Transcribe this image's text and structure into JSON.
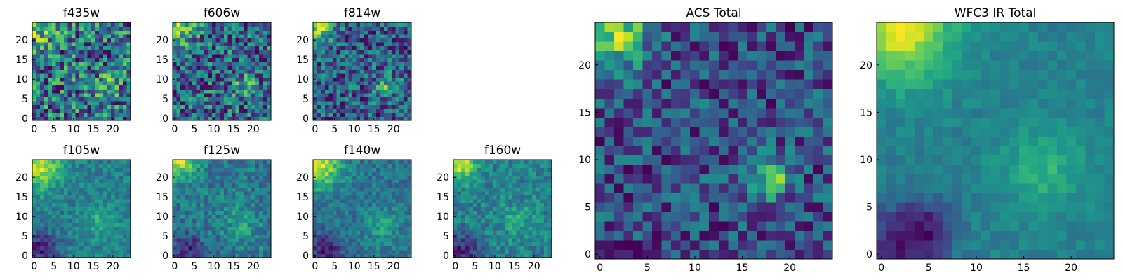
{
  "chart_data": [
    {
      "type": "heatmap",
      "id": "f435w",
      "title": "f435w",
      "grid_size": 25,
      "colormap": "viridis",
      "xticks": [
        0,
        5,
        10,
        15,
        20
      ],
      "yticks": [
        0,
        5,
        10,
        15,
        20
      ],
      "xlim": [
        -0.5,
        24.5
      ],
      "ylim": [
        -0.5,
        24.5
      ],
      "noise": 0.34,
      "seed": 11,
      "features": [
        {
          "cx": 1,
          "cy": 23,
          "amp": 0.25,
          "sigma": 3
        },
        {
          "cx": 18,
          "cy": 8,
          "amp": 0.2,
          "sigma": 2
        }
      ]
    },
    {
      "type": "heatmap",
      "id": "f606w",
      "title": "f606w",
      "grid_size": 25,
      "colormap": "viridis",
      "xticks": [
        0,
        5,
        10,
        15,
        20
      ],
      "yticks": [
        0,
        5,
        10,
        15,
        20
      ],
      "xlim": [
        -0.5,
        24.5
      ],
      "ylim": [
        -0.5,
        24.5
      ],
      "noise": 0.32,
      "seed": 23,
      "features": [
        {
          "cx": 1,
          "cy": 23,
          "amp": 0.35,
          "sigma": 3
        },
        {
          "cx": 18,
          "cy": 8,
          "amp": 0.25,
          "sigma": 2
        }
      ]
    },
    {
      "type": "heatmap",
      "id": "f814w",
      "title": "f814w",
      "grid_size": 25,
      "colormap": "viridis",
      "xticks": [
        0,
        5,
        10,
        15,
        20
      ],
      "yticks": [
        0,
        5,
        10,
        15,
        20
      ],
      "xlim": [
        -0.5,
        24.5
      ],
      "ylim": [
        -0.5,
        24.5
      ],
      "noise": 0.3,
      "seed": 37,
      "features": [
        {
          "cx": 1,
          "cy": 24,
          "amp": 0.5,
          "sigma": 3
        },
        {
          "cx": 18,
          "cy": 8,
          "amp": 0.3,
          "sigma": 2
        }
      ]
    },
    {
      "type": "heatmap",
      "id": "f105w",
      "title": "f105w",
      "grid_size": 25,
      "colormap": "viridis",
      "xticks": [
        0,
        5,
        10,
        15,
        20
      ],
      "yticks": [
        0,
        5,
        10,
        15,
        20
      ],
      "xlim": [
        -0.5,
        24.5
      ],
      "ylim": [
        -0.5,
        24.5
      ],
      "noise": 0.18,
      "seed": 41,
      "features": [
        {
          "cx": 1,
          "cy": 23,
          "amp": 0.65,
          "sigma": 4
        },
        {
          "cx": 17,
          "cy": 9,
          "amp": 0.25,
          "sigma": 3
        },
        {
          "cx": 2,
          "cy": 2,
          "amp": -0.45,
          "sigma": 3
        }
      ]
    },
    {
      "type": "heatmap",
      "id": "f125w",
      "title": "f125w",
      "grid_size": 25,
      "colormap": "viridis",
      "xticks": [
        0,
        5,
        10,
        15,
        20
      ],
      "yticks": [
        0,
        5,
        10,
        15,
        20
      ],
      "xlim": [
        -0.5,
        24.5
      ],
      "ylim": [
        -0.5,
        24.5
      ],
      "noise": 0.2,
      "seed": 53,
      "features": [
        {
          "cx": 1,
          "cy": 24,
          "amp": 0.6,
          "sigma": 3
        },
        {
          "cx": 17,
          "cy": 9,
          "amp": 0.2,
          "sigma": 3
        },
        {
          "cx": 3,
          "cy": 2,
          "amp": -0.35,
          "sigma": 3
        }
      ]
    },
    {
      "type": "heatmap",
      "id": "f140w",
      "title": "f140w",
      "grid_size": 25,
      "colormap": "viridis",
      "xticks": [
        0,
        5,
        10,
        15,
        20
      ],
      "yticks": [
        0,
        5,
        10,
        15,
        20
      ],
      "xlim": [
        -0.5,
        24.5
      ],
      "ylim": [
        -0.5,
        24.5
      ],
      "noise": 0.18,
      "seed": 67,
      "features": [
        {
          "cx": 1,
          "cy": 23,
          "amp": 0.7,
          "sigma": 4
        },
        {
          "cx": 17,
          "cy": 8,
          "amp": 0.25,
          "sigma": 3
        },
        {
          "cx": 3,
          "cy": 2,
          "amp": -0.4,
          "sigma": 3
        }
      ]
    },
    {
      "type": "heatmap",
      "id": "f160w",
      "title": "f160w",
      "grid_size": 25,
      "colormap": "viridis",
      "xticks": [
        0,
        5,
        10,
        15,
        20
      ],
      "yticks": [
        0,
        5,
        10,
        15,
        20
      ],
      "xlim": [
        -0.5,
        24.5
      ],
      "ylim": [
        -0.5,
        24.5
      ],
      "noise": 0.2,
      "seed": 79,
      "features": [
        {
          "cx": 1,
          "cy": 24,
          "amp": 0.65,
          "sigma": 3
        },
        {
          "cx": 16,
          "cy": 9,
          "amp": 0.2,
          "sigma": 3
        },
        {
          "cx": 2,
          "cy": 1,
          "amp": -0.45,
          "sigma": 3
        }
      ]
    },
    {
      "type": "heatmap",
      "id": "acs_total",
      "title": "ACS Total",
      "grid_size": 25,
      "colormap": "viridis",
      "xticks": [
        0,
        5,
        10,
        15,
        20
      ],
      "yticks": [
        0,
        5,
        10,
        15,
        20
      ],
      "xlim": [
        -0.5,
        24.5
      ],
      "ylim": [
        -0.5,
        24.5
      ],
      "noise": 0.22,
      "seed": 97,
      "features": [
        {
          "cx": 1,
          "cy": 24,
          "amp": 0.55,
          "sigma": 3
        },
        {
          "cx": 18,
          "cy": 8,
          "amp": 0.45,
          "sigma": 1.5
        }
      ]
    },
    {
      "type": "heatmap",
      "id": "wfc3_ir_total",
      "title": "WFC3 IR Total",
      "grid_size": 25,
      "colormap": "viridis",
      "xticks": [
        0,
        5,
        10,
        15,
        20
      ],
      "yticks": [
        0,
        5,
        10,
        15,
        20
      ],
      "xlim": [
        -0.5,
        24.5
      ],
      "ylim": [
        -0.5,
        24.5
      ],
      "noise": 0.1,
      "seed": 113,
      "features": [
        {
          "cx": 2,
          "cy": 24,
          "amp": 0.75,
          "sigma": 4
        },
        {
          "cx": 17,
          "cy": 9,
          "amp": 0.3,
          "sigma": 3
        },
        {
          "cx": 2,
          "cy": 1,
          "amp": -0.5,
          "sigma": 3
        },
        {
          "cx": 5,
          "cy": 3,
          "amp": -0.3,
          "sigma": 2
        }
      ]
    }
  ]
}
